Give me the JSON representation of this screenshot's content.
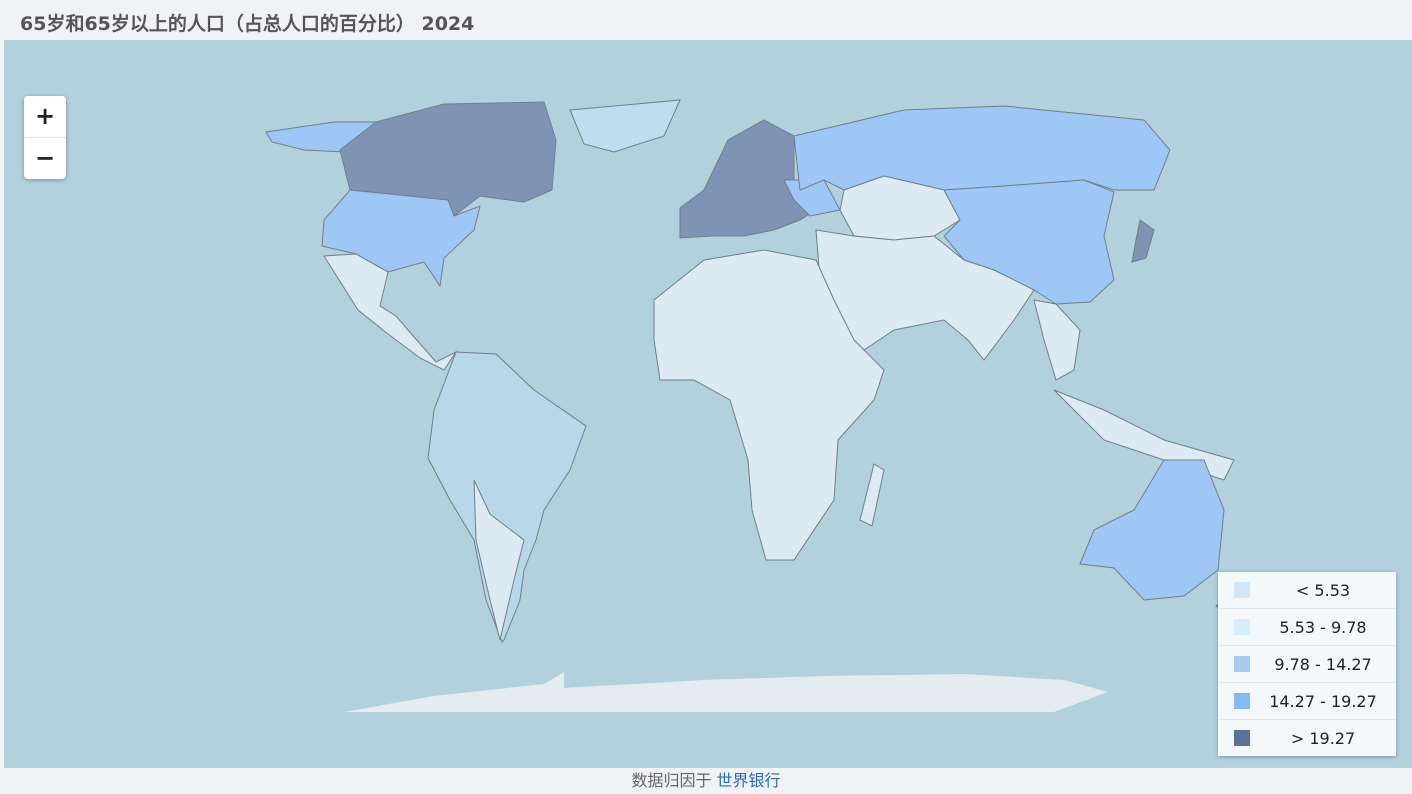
{
  "header": {
    "title": "65岁和65岁以上的人口（占总人口的百分比） 2024"
  },
  "zoom": {
    "in": "+",
    "out": "−"
  },
  "legend": {
    "items": [
      {
        "label": "< 5.53",
        "color": "#d3e7f7"
      },
      {
        "label": "5.53 - 9.78",
        "color": "#d9edf8"
      },
      {
        "label": "9.78 - 14.27",
        "color": "#a8cdec"
      },
      {
        "label": "14.27 - 19.27",
        "color": "#86baf3"
      },
      {
        "label": "> 19.27",
        "color": "#5a7198"
      }
    ]
  },
  "footer": {
    "prefix": "数据归因于",
    "link": "世界银行"
  }
}
